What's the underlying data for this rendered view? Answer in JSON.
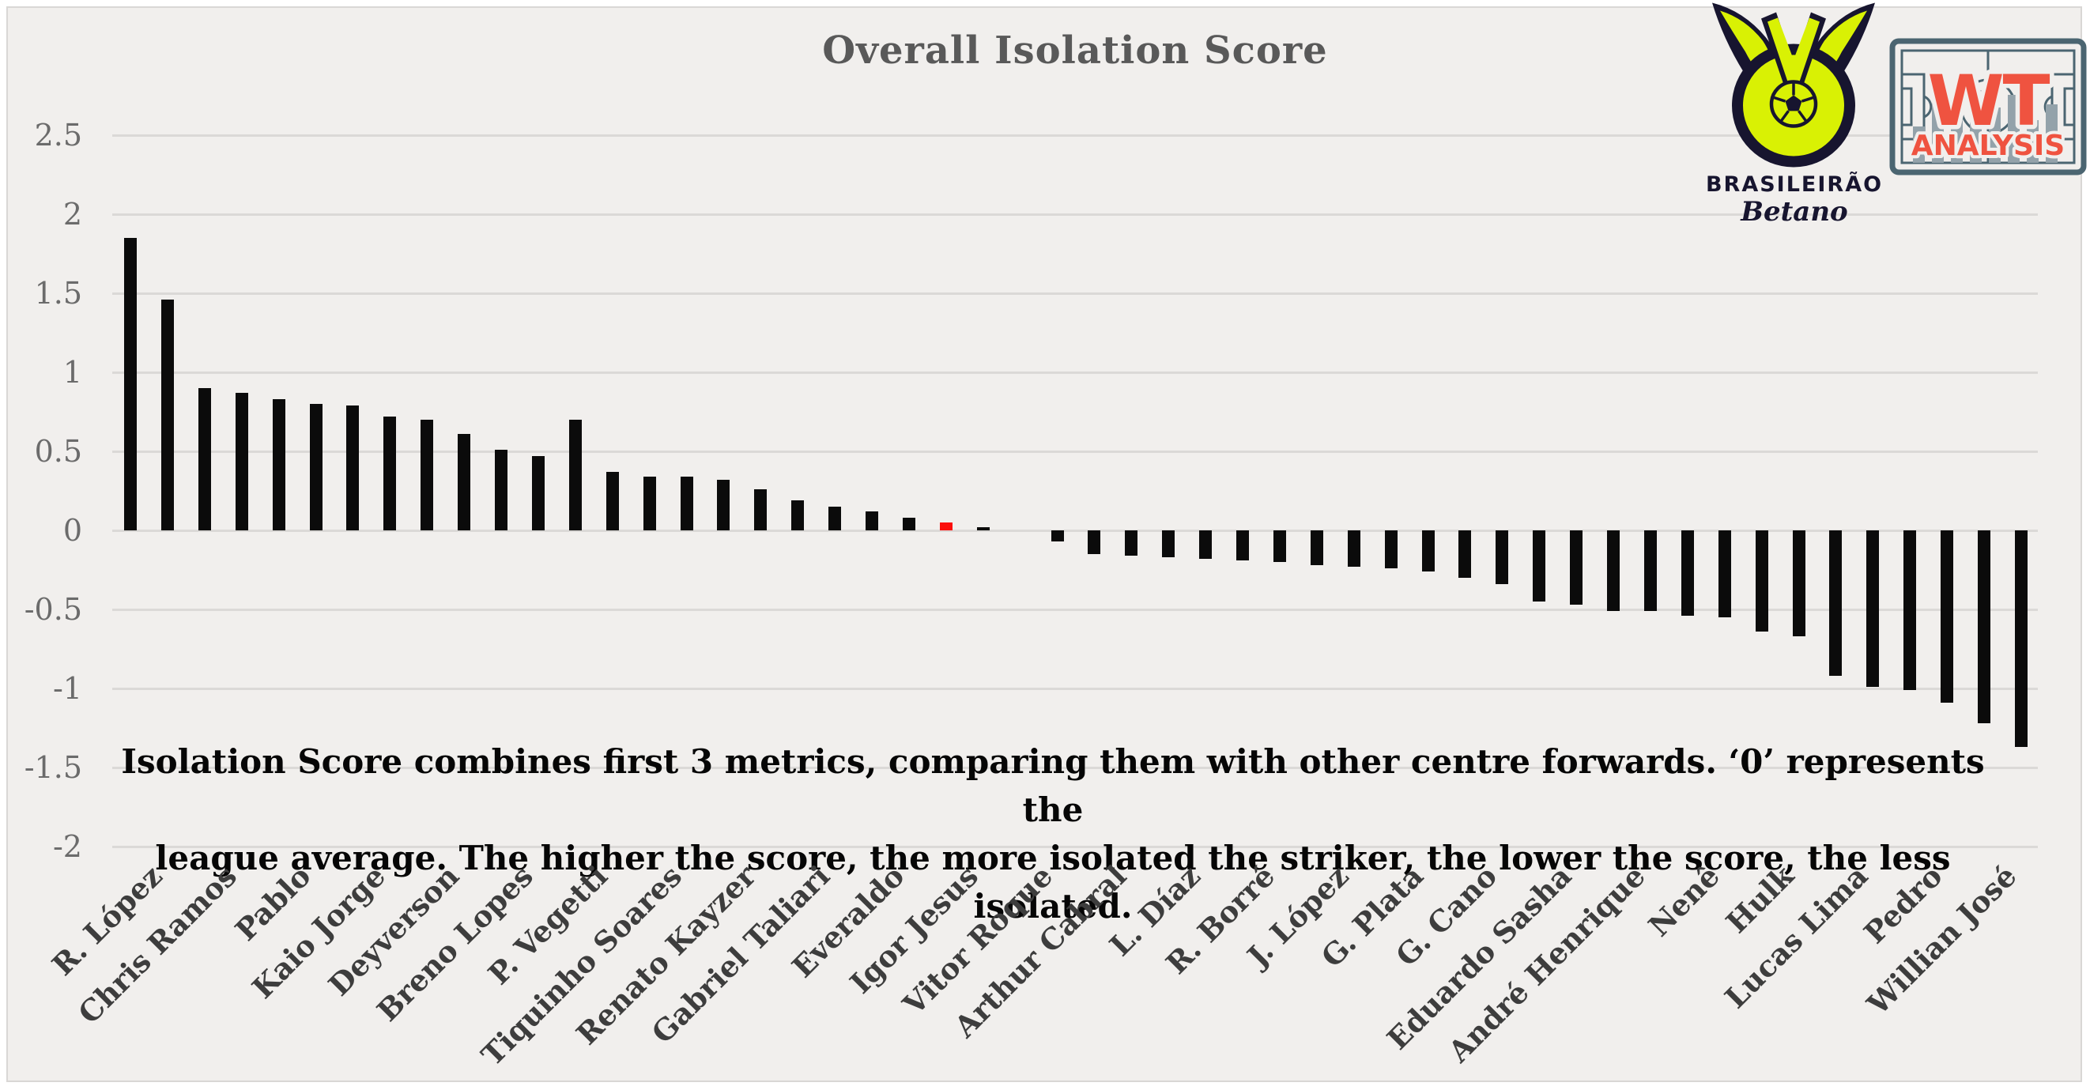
{
  "title": "Overall Isolation Score",
  "annotation": {
    "line1": "Isolation Score combines first 3 metrics, comparing them with other centre forwards. ‘0’ represents the",
    "line2": "league average. The higher the score, the more isolated the striker, the lower the score, the less isolated."
  },
  "logos": {
    "brasileirao": {
      "league": "BRASILEIRÃO",
      "sponsor": "Betano"
    },
    "wt": {
      "top": "WT",
      "bottom": "ANALYSIS"
    }
  },
  "colors": {
    "canvas_background": "#f1efed",
    "gridline": "#dbd9d7",
    "bar": "#0b0b0b",
    "highlight_bar": "#fb0f0c",
    "title_text": "#595959",
    "axis_text": "#6b6b6b",
    "category_text": "#3d3d3d",
    "annotation_text": "#060606",
    "crest_lime": "#d9f104",
    "crest_navy": "#17152f",
    "wt_red": "#ef5340",
    "wt_slate": "#4b6571",
    "wt_bar_gray": "#93a2aa"
  },
  "chart_data": {
    "type": "bar",
    "title": "Overall Isolation Score",
    "xlabel": "",
    "ylabel": "",
    "ylim": [
      -2,
      2.5
    ],
    "yticks": [
      2.5,
      2,
      1.5,
      1,
      0.5,
      0,
      -0.5,
      -1,
      -1.5,
      -2
    ],
    "grid": true,
    "legend": false,
    "label_note": "category labels shown for every second bar only",
    "highlight": {
      "bar_label": "Igor Jesus",
      "color": "#fb0f0c"
    },
    "bars": [
      {
        "label": "R. López",
        "value": 1.85
      },
      {
        "label": null,
        "value": 1.46
      },
      {
        "label": "Chris Ramos",
        "value": 0.9
      },
      {
        "label": null,
        "value": 0.87
      },
      {
        "label": "Pablo",
        "value": 0.83
      },
      {
        "label": null,
        "value": 0.8
      },
      {
        "label": "Kaio Jorge",
        "value": 0.79
      },
      {
        "label": null,
        "value": 0.72
      },
      {
        "label": "Deyverson",
        "value": 0.7
      },
      {
        "label": null,
        "value": 0.61
      },
      {
        "label": "Breno Lopes",
        "value": 0.51
      },
      {
        "label": null,
        "value": 0.47
      },
      {
        "label": "P. Vegetti",
        "value": 0.7
      },
      {
        "label": null,
        "value": 0.37
      },
      {
        "label": "Tiquinho Soares",
        "value": 0.34
      },
      {
        "label": null,
        "value": 0.34
      },
      {
        "label": "Renato Kayzer",
        "value": 0.32
      },
      {
        "label": null,
        "value": 0.26
      },
      {
        "label": "Gabriel Taliari",
        "value": 0.19
      },
      {
        "label": null,
        "value": 0.15
      },
      {
        "label": "Everaldo",
        "value": 0.12
      },
      {
        "label": null,
        "value": 0.08
      },
      {
        "label": "Igor Jesus",
        "value": 0.05,
        "highlight": true
      },
      {
        "label": null,
        "value": 0.02
      },
      {
        "label": "Vitor Roque",
        "value": 0.0
      },
      {
        "label": null,
        "value": -0.07
      },
      {
        "label": "Arthur Cabral",
        "value": -0.15
      },
      {
        "label": null,
        "value": -0.16
      },
      {
        "label": "L. Díaz",
        "value": -0.17
      },
      {
        "label": null,
        "value": -0.18
      },
      {
        "label": "R. Borré",
        "value": -0.19
      },
      {
        "label": null,
        "value": -0.2
      },
      {
        "label": "J. López",
        "value": -0.22
      },
      {
        "label": null,
        "value": -0.23
      },
      {
        "label": "G. Plata",
        "value": -0.24
      },
      {
        "label": null,
        "value": -0.26
      },
      {
        "label": "G. Cano",
        "value": -0.3
      },
      {
        "label": null,
        "value": -0.34
      },
      {
        "label": "Eduardo Sasha",
        "value": -0.45
      },
      {
        "label": null,
        "value": -0.47
      },
      {
        "label": "André Henrique",
        "value": -0.51
      },
      {
        "label": null,
        "value": -0.51
      },
      {
        "label": "Nenê",
        "value": -0.54
      },
      {
        "label": null,
        "value": -0.55
      },
      {
        "label": "Hulk",
        "value": -0.64
      },
      {
        "label": null,
        "value": -0.67
      },
      {
        "label": "Lucas Lima",
        "value": -0.92
      },
      {
        "label": null,
        "value": -0.99
      },
      {
        "label": "Pedro",
        "value": -1.01
      },
      {
        "label": null,
        "value": -1.09
      },
      {
        "label": "Willian José",
        "value": -1.22
      },
      {
        "label": null,
        "value": -1.37
      }
    ]
  }
}
